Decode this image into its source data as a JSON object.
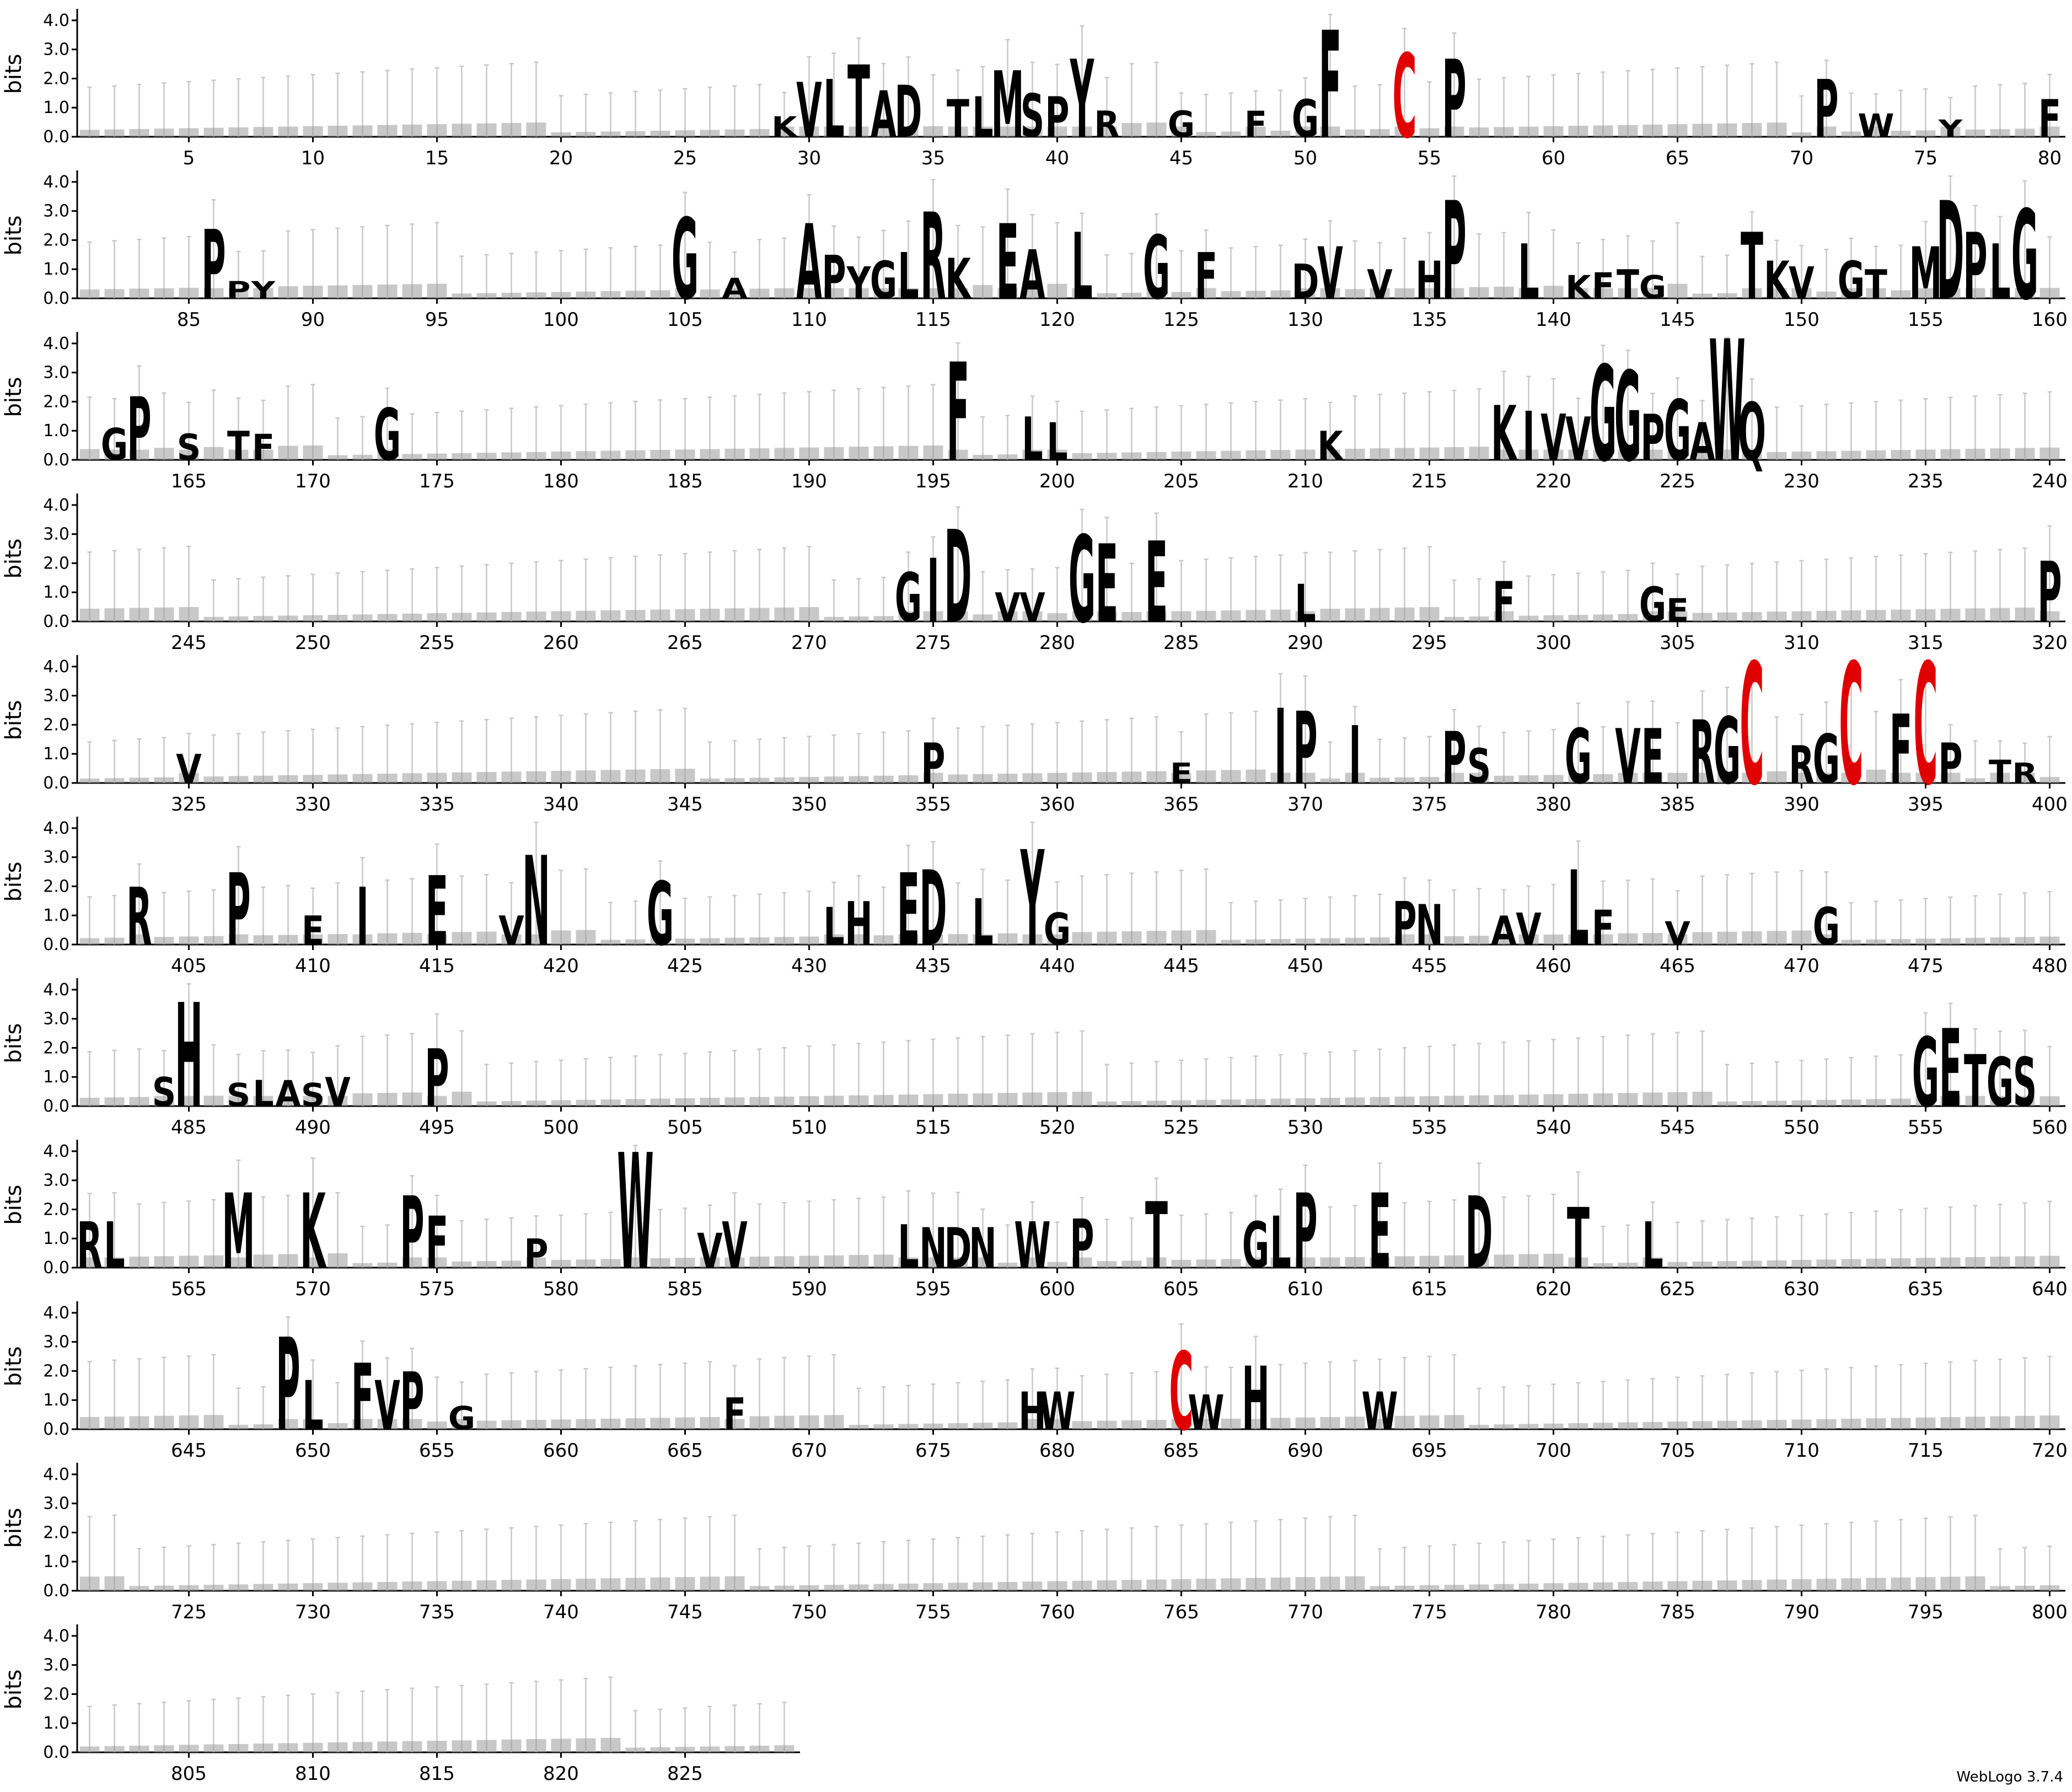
{
  "chart_data": {
    "type": "sequence-logo",
    "ylabel": "bits",
    "ylim": [
      0,
      4.32
    ],
    "yticks": [
      "0.0",
      "1.0",
      "2.0",
      "3.0",
      "4.0"
    ],
    "positions_per_row": 80,
    "total_positions": 829,
    "xtick_step": 5,
    "rows": [
      {
        "start": 1,
        "end": 80,
        "xticks": [
          5,
          10,
          15,
          20,
          25,
          30,
          35,
          40,
          45,
          50,
          55,
          60,
          65,
          70,
          75,
          80
        ]
      },
      {
        "start": 81,
        "end": 160,
        "xticks": [
          85,
          90,
          95,
          100,
          105,
          110,
          115,
          120,
          125,
          130,
          135,
          140,
          145,
          150,
          155,
          160
        ]
      },
      {
        "start": 161,
        "end": 240,
        "xticks": [
          165,
          170,
          175,
          180,
          185,
          190,
          195,
          200,
          205,
          210,
          215,
          220,
          225,
          230,
          235,
          240
        ]
      },
      {
        "start": 241,
        "end": 320,
        "xticks": [
          245,
          250,
          255,
          260,
          265,
          270,
          275,
          280,
          285,
          290,
          295,
          300,
          305,
          310,
          315,
          320
        ]
      },
      {
        "start": 321,
        "end": 400,
        "xticks": [
          325,
          330,
          335,
          340,
          345,
          350,
          355,
          360,
          365,
          370,
          375,
          380,
          385,
          390,
          395,
          400
        ]
      },
      {
        "start": 401,
        "end": 480,
        "xticks": [
          405,
          410,
          415,
          420,
          425,
          430,
          435,
          440,
          445,
          450,
          455,
          460,
          465,
          470,
          475,
          480
        ]
      },
      {
        "start": 481,
        "end": 560,
        "xticks": [
          485,
          490,
          495,
          500,
          505,
          510,
          515,
          520,
          525,
          530,
          535,
          540,
          545,
          550,
          555,
          560
        ]
      },
      {
        "start": 561,
        "end": 640,
        "xticks": [
          565,
          570,
          575,
          580,
          585,
          590,
          595,
          600,
          605,
          610,
          615,
          620,
          625,
          630,
          635,
          640
        ]
      },
      {
        "start": 641,
        "end": 720,
        "xticks": [
          645,
          650,
          655,
          660,
          665,
          670,
          675,
          680,
          685,
          690,
          695,
          700,
          705,
          710,
          715,
          720
        ]
      },
      {
        "start": 721,
        "end": 800,
        "xticks": [
          725,
          730,
          735,
          740,
          745,
          750,
          755,
          760,
          765,
          770,
          775,
          780,
          785,
          790,
          795,
          800
        ]
      },
      {
        "start": 801,
        "end": 829,
        "xticks": [
          805,
          810,
          815,
          820,
          825
        ]
      }
    ],
    "residues": [
      {
        "pos": 29,
        "letter": "K",
        "bits": 0.7
      },
      {
        "pos": 30,
        "letter": "V",
        "bits": 1.9
      },
      {
        "pos": 31,
        "letter": "L",
        "bits": 2.0
      },
      {
        "pos": 32,
        "letter": "T",
        "bits": 2.5
      },
      {
        "pos": 33,
        "letter": "A",
        "bits": 1.6
      },
      {
        "pos": 34,
        "letter": "D",
        "bits": 1.8
      },
      {
        "pos": 36,
        "letter": "T",
        "bits": 1.3
      },
      {
        "pos": 37,
        "letter": "L",
        "bits": 1.4
      },
      {
        "pos": 38,
        "letter": "M",
        "bits": 2.3
      },
      {
        "pos": 39,
        "letter": "S",
        "bits": 1.5
      },
      {
        "pos": 40,
        "letter": "P",
        "bits": 1.4
      },
      {
        "pos": 41,
        "letter": "Y",
        "bits": 2.7
      },
      {
        "pos": 42,
        "letter": "R",
        "bits": 0.9
      },
      {
        "pos": 45,
        "letter": "G",
        "bits": 0.9
      },
      {
        "pos": 48,
        "letter": "F",
        "bits": 0.9
      },
      {
        "pos": 50,
        "letter": "G",
        "bits": 1.3
      },
      {
        "pos": 51,
        "letter": "F",
        "bits": 3.7
      },
      {
        "pos": 54,
        "letter": "C",
        "bits": 2.9,
        "color": "#e00000"
      },
      {
        "pos": 56,
        "letter": "P",
        "bits": 2.7
      },
      {
        "pos": 71,
        "letter": "P",
        "bits": 2.0
      },
      {
        "pos": 73,
        "letter": "W",
        "bits": 0.8
      },
      {
        "pos": 76,
        "letter": "Y",
        "bits": 0.6
      },
      {
        "pos": 80,
        "letter": "F",
        "bits": 1.3
      },
      {
        "pos": 86,
        "letter": "P",
        "bits": 2.4
      },
      {
        "pos": 87,
        "letter": "P",
        "bits": 0.6
      },
      {
        "pos": 88,
        "letter": "Y",
        "bits": 0.6
      },
      {
        "pos": 105,
        "letter": "G",
        "bits": 2.8
      },
      {
        "pos": 107,
        "letter": "A",
        "bits": 0.7
      },
      {
        "pos": 110,
        "letter": "A",
        "bits": 2.6
      },
      {
        "pos": 111,
        "letter": "P",
        "bits": 1.5
      },
      {
        "pos": 112,
        "letter": "Y",
        "bits": 1.1
      },
      {
        "pos": 113,
        "letter": "G",
        "bits": 1.3
      },
      {
        "pos": 114,
        "letter": "L",
        "bits": 1.6
      },
      {
        "pos": 115,
        "letter": "R",
        "bits": 3.0
      },
      {
        "pos": 116,
        "letter": "K",
        "bits": 1.4
      },
      {
        "pos": 118,
        "letter": "E",
        "bits": 2.6
      },
      {
        "pos": 119,
        "letter": "A",
        "bits": 1.7
      },
      {
        "pos": 121,
        "letter": "L",
        "bits": 2.3
      },
      {
        "pos": 124,
        "letter": "G",
        "bits": 2.2
      },
      {
        "pos": 126,
        "letter": "F",
        "bits": 1.6
      },
      {
        "pos": 130,
        "letter": "D",
        "bits": 1.2
      },
      {
        "pos": 131,
        "letter": "V",
        "bits": 1.8
      },
      {
        "pos": 133,
        "letter": "V",
        "bits": 1.0
      },
      {
        "pos": 135,
        "letter": "H",
        "bits": 1.3
      },
      {
        "pos": 136,
        "letter": "P",
        "bits": 3.4
      },
      {
        "pos": 139,
        "letter": "L",
        "bits": 1.9
      },
      {
        "pos": 141,
        "letter": "K",
        "bits": 0.8
      },
      {
        "pos": 142,
        "letter": "F",
        "bits": 0.9
      },
      {
        "pos": 143,
        "letter": "T",
        "bits": 1.0
      },
      {
        "pos": 144,
        "letter": "G",
        "bits": 0.8
      },
      {
        "pos": 148,
        "letter": "T",
        "bits": 2.3
      },
      {
        "pos": 149,
        "letter": "K",
        "bits": 1.3
      },
      {
        "pos": 150,
        "letter": "V",
        "bits": 1.1
      },
      {
        "pos": 152,
        "letter": "G",
        "bits": 1.3
      },
      {
        "pos": 153,
        "letter": "T",
        "bits": 1.0
      },
      {
        "pos": 155,
        "letter": "M",
        "bits": 1.8
      },
      {
        "pos": 156,
        "letter": "D",
        "bits": 3.4
      },
      {
        "pos": 157,
        "letter": "P",
        "bits": 2.3
      },
      {
        "pos": 158,
        "letter": "L",
        "bits": 1.9
      },
      {
        "pos": 159,
        "letter": "G",
        "bits": 3.1
      },
      {
        "pos": 162,
        "letter": "G",
        "bits": 1.1
      },
      {
        "pos": 163,
        "letter": "P",
        "bits": 2.2
      },
      {
        "pos": 165,
        "letter": "S",
        "bits": 0.9
      },
      {
        "pos": 167,
        "letter": "T",
        "bits": 1.0
      },
      {
        "pos": 168,
        "letter": "F",
        "bits": 0.9
      },
      {
        "pos": 173,
        "letter": "G",
        "bits": 1.8
      },
      {
        "pos": 196,
        "letter": "F",
        "bits": 3.4
      },
      {
        "pos": 199,
        "letter": "L",
        "bits": 1.5
      },
      {
        "pos": 200,
        "letter": "L",
        "bits": 1.3
      },
      {
        "pos": 211,
        "letter": "K",
        "bits": 1.0
      },
      {
        "pos": 218,
        "letter": "K",
        "bits": 1.9
      },
      {
        "pos": 219,
        "letter": "I",
        "bits": 1.7
      },
      {
        "pos": 220,
        "letter": "V",
        "bits": 1.6
      },
      {
        "pos": 221,
        "letter": "V",
        "bits": 1.5
      },
      {
        "pos": 222,
        "letter": "G",
        "bits": 3.3
      },
      {
        "pos": 223,
        "letter": "G",
        "bits": 3.1
      },
      {
        "pos": 224,
        "letter": "P",
        "bits": 1.6
      },
      {
        "pos": 225,
        "letter": "G",
        "bits": 2.1
      },
      {
        "pos": 226,
        "letter": "A",
        "bits": 1.3
      },
      {
        "pos": 227,
        "letter": "W",
        "bits": 4.2
      },
      {
        "pos": 228,
        "letter": "Q",
        "bits": 2.0
      },
      {
        "pos": 274,
        "letter": "G",
        "bits": 1.7
      },
      {
        "pos": 275,
        "letter": "I",
        "bits": 2.2
      },
      {
        "pos": 276,
        "letter": "D",
        "bits": 3.2
      },
      {
        "pos": 278,
        "letter": "V",
        "bits": 1.0
      },
      {
        "pos": 279,
        "letter": "V",
        "bits": 1.0
      },
      {
        "pos": 281,
        "letter": "G",
        "bits": 3.0
      },
      {
        "pos": 282,
        "letter": "E",
        "bits": 2.7
      },
      {
        "pos": 284,
        "letter": "E",
        "bits": 2.8
      },
      {
        "pos": 290,
        "letter": "L",
        "bits": 1.3
      },
      {
        "pos": 298,
        "letter": "F",
        "bits": 1.4
      },
      {
        "pos": 304,
        "letter": "G",
        "bits": 1.2
      },
      {
        "pos": 305,
        "letter": "E",
        "bits": 0.8
      },
      {
        "pos": 320,
        "letter": "P",
        "bits": 2.1
      },
      {
        "pos": 325,
        "letter": "V",
        "bits": 1.0
      },
      {
        "pos": 355,
        "letter": "P",
        "bits": 1.4
      },
      {
        "pos": 365,
        "letter": "E",
        "bits": 0.7
      },
      {
        "pos": 369,
        "letter": "I",
        "bits": 2.6
      },
      {
        "pos": 370,
        "letter": "P",
        "bits": 2.5
      },
      {
        "pos": 372,
        "letter": "I",
        "bits": 2.0
      },
      {
        "pos": 376,
        "letter": "P",
        "bits": 1.8
      },
      {
        "pos": 377,
        "letter": "S",
        "bits": 1.2
      },
      {
        "pos": 381,
        "letter": "G",
        "bits": 1.9
      },
      {
        "pos": 383,
        "letter": "V",
        "bits": 1.9
      },
      {
        "pos": 384,
        "letter": "E",
        "bits": 1.9
      },
      {
        "pos": 386,
        "letter": "R",
        "bits": 2.2
      },
      {
        "pos": 387,
        "letter": "G",
        "bits": 2.3
      },
      {
        "pos": 388,
        "letter": "C",
        "bits": 4.2,
        "color": "#e00000"
      },
      {
        "pos": 390,
        "letter": "R",
        "bits": 1.3
      },
      {
        "pos": 391,
        "letter": "G",
        "bits": 1.7
      },
      {
        "pos": 392,
        "letter": "C",
        "bits": 4.2,
        "color": "#e00000"
      },
      {
        "pos": 394,
        "letter": "F",
        "bits": 2.4
      },
      {
        "pos": 395,
        "letter": "C",
        "bits": 4.2,
        "color": "#e00000"
      },
      {
        "pos": 396,
        "letter": "P",
        "bits": 1.4
      },
      {
        "pos": 398,
        "letter": "T",
        "bits": 0.8
      },
      {
        "pos": 399,
        "letter": "R",
        "bits": 0.7
      },
      {
        "pos": 403,
        "letter": "R",
        "bits": 2.0
      },
      {
        "pos": 407,
        "letter": "P",
        "bits": 2.5
      },
      {
        "pos": 410,
        "letter": "E",
        "bits": 1.0
      },
      {
        "pos": 412,
        "letter": "I",
        "bits": 2.0
      },
      {
        "pos": 415,
        "letter": "E",
        "bits": 2.4
      },
      {
        "pos": 418,
        "letter": "V",
        "bits": 1.0
      },
      {
        "pos": 419,
        "letter": "N",
        "bits": 3.1
      },
      {
        "pos": 424,
        "letter": "G",
        "bits": 2.2
      },
      {
        "pos": 431,
        "letter": "L",
        "bits": 1.3
      },
      {
        "pos": 432,
        "letter": "H",
        "bits": 1.5
      },
      {
        "pos": 434,
        "letter": "E",
        "bits": 2.5
      },
      {
        "pos": 435,
        "letter": "D",
        "bits": 2.6
      },
      {
        "pos": 437,
        "letter": "L",
        "bits": 1.6
      },
      {
        "pos": 439,
        "letter": "Y",
        "bits": 3.3
      },
      {
        "pos": 440,
        "letter": "G",
        "bits": 1.1
      },
      {
        "pos": 454,
        "letter": "P",
        "bits": 1.5
      },
      {
        "pos": 455,
        "letter": "N",
        "bits": 1.4
      },
      {
        "pos": 458,
        "letter": "A",
        "bits": 1.0
      },
      {
        "pos": 459,
        "letter": "V",
        "bits": 1.1
      },
      {
        "pos": 461,
        "letter": "L",
        "bits": 2.6
      },
      {
        "pos": 462,
        "letter": "F",
        "bits": 1.2
      },
      {
        "pos": 465,
        "letter": "V",
        "bits": 0.8
      },
      {
        "pos": 471,
        "letter": "G",
        "bits": 1.3
      },
      {
        "pos": 484,
        "letter": "S",
        "bits": 1.0
      },
      {
        "pos": 485,
        "letter": "H",
        "bits": 3.6
      },
      {
        "pos": 487,
        "letter": "S",
        "bits": 0.8
      },
      {
        "pos": 488,
        "letter": "L",
        "bits": 0.9
      },
      {
        "pos": 489,
        "letter": "A",
        "bits": 0.9
      },
      {
        "pos": 490,
        "letter": "S",
        "bits": 0.8
      },
      {
        "pos": 491,
        "letter": "V",
        "bits": 1.0
      },
      {
        "pos": 495,
        "letter": "P",
        "bits": 2.0
      },
      {
        "pos": 555,
        "letter": "G",
        "bits": 2.4
      },
      {
        "pos": 556,
        "letter": "E",
        "bits": 2.7
      },
      {
        "pos": 557,
        "letter": "T",
        "bits": 1.8
      },
      {
        "pos": 558,
        "letter": "G",
        "bits": 1.7
      },
      {
        "pos": 559,
        "letter": "S",
        "bits": 1.7
      },
      {
        "pos": 561,
        "letter": "R",
        "bits": 1.6
      },
      {
        "pos": 562,
        "letter": "L",
        "bits": 1.6
      },
      {
        "pos": 567,
        "letter": "M",
        "bits": 2.6
      },
      {
        "pos": 570,
        "letter": "K",
        "bits": 2.6
      },
      {
        "pos": 574,
        "letter": "P",
        "bits": 2.5
      },
      {
        "pos": 575,
        "letter": "F",
        "bits": 1.8
      },
      {
        "pos": 579,
        "letter": "P",
        "bits": 1.0
      },
      {
        "pos": 583,
        "letter": "W",
        "bits": 4.0
      },
      {
        "pos": 586,
        "letter": "V",
        "bits": 1.2
      },
      {
        "pos": 587,
        "letter": "V",
        "bits": 1.6
      },
      {
        "pos": 594,
        "letter": "L",
        "bits": 1.5
      },
      {
        "pos": 595,
        "letter": "N",
        "bits": 1.4
      },
      {
        "pos": 596,
        "letter": "D",
        "bits": 1.4
      },
      {
        "pos": 597,
        "letter": "N",
        "bits": 1.4
      },
      {
        "pos": 599,
        "letter": "W",
        "bits": 1.6
      },
      {
        "pos": 601,
        "letter": "P",
        "bits": 1.7
      },
      {
        "pos": 604,
        "letter": "T",
        "bits": 2.3
      },
      {
        "pos": 608,
        "letter": "G",
        "bits": 1.6
      },
      {
        "pos": 609,
        "letter": "L",
        "bits": 1.8
      },
      {
        "pos": 610,
        "letter": "P",
        "bits": 2.6
      },
      {
        "pos": 613,
        "letter": "E",
        "bits": 2.6
      },
      {
        "pos": 617,
        "letter": "D",
        "bits": 2.5
      },
      {
        "pos": 621,
        "letter": "T",
        "bits": 2.1
      },
      {
        "pos": 624,
        "letter": "L",
        "bits": 1.6
      },
      {
        "pos": 649,
        "letter": "P",
        "bits": 3.2
      },
      {
        "pos": 650,
        "letter": "L",
        "bits": 1.7
      },
      {
        "pos": 652,
        "letter": "F",
        "bits": 2.3
      },
      {
        "pos": 653,
        "letter": "V",
        "bits": 1.7
      },
      {
        "pos": 654,
        "letter": "P",
        "bits": 2.0
      },
      {
        "pos": 656,
        "letter": "G",
        "bits": 0.8
      },
      {
        "pos": 667,
        "letter": "F",
        "bits": 1.1
      },
      {
        "pos": 679,
        "letter": "H",
        "bits": 1.3
      },
      {
        "pos": 680,
        "letter": "W",
        "bits": 1.3
      },
      {
        "pos": 685,
        "letter": "C",
        "bits": 2.7,
        "color": "#e00000"
      },
      {
        "pos": 686,
        "letter": "W",
        "bits": 1.2
      },
      {
        "pos": 688,
        "letter": "H",
        "bits": 2.2
      },
      {
        "pos": 693,
        "letter": "W",
        "bits": 1.3
      }
    ]
  },
  "footer": {
    "credit": "WebLogo 3.7.4"
  }
}
